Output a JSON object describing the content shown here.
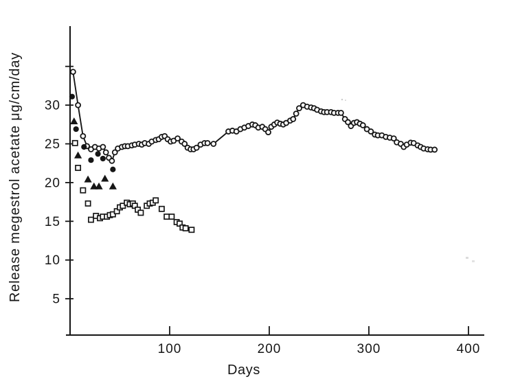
{
  "figure": {
    "background": "#ffffff",
    "ink": "#161616"
  },
  "chart_data": {
    "type": "scatter",
    "title": "",
    "xlabel": "Days",
    "ylabel": "Release megestrol acetate μg/cm/day",
    "xlim": [
      0,
      416
    ],
    "ylim": [
      0,
      40
    ],
    "x_ticks": [
      100,
      200,
      300,
      400
    ],
    "y_ticks": [
      5,
      10,
      15,
      20,
      25,
      30
    ],
    "y_minor_ticks": [
      35
    ],
    "grid": false,
    "legend": "none",
    "series": [
      {
        "name": "open-circle-line",
        "marker": "open-circle",
        "connected": true,
        "points": [
          [
            3,
            34.3
          ],
          [
            8,
            30.0
          ],
          [
            13,
            26.0
          ],
          [
            17,
            24.7
          ],
          [
            21,
            24.3
          ],
          [
            25,
            24.6
          ],
          [
            29,
            24.4
          ],
          [
            33,
            24.6
          ],
          [
            36,
            23.9
          ],
          [
            39,
            23.2
          ],
          [
            42,
            22.8
          ],
          [
            45,
            23.9
          ],
          [
            48,
            24.4
          ],
          [
            52,
            24.6
          ],
          [
            55,
            24.7
          ],
          [
            58,
            24.7
          ],
          [
            62,
            24.8
          ],
          [
            65,
            24.9
          ],
          [
            69,
            25.0
          ],
          [
            72,
            24.9
          ],
          [
            75,
            25.1
          ],
          [
            79,
            25.0
          ],
          [
            82,
            25.3
          ],
          [
            86,
            25.5
          ],
          [
            89,
            25.6
          ],
          [
            92,
            25.9
          ],
          [
            95,
            26.0
          ],
          [
            98,
            25.6
          ],
          [
            101,
            25.3
          ],
          [
            104,
            25.4
          ],
          [
            108,
            25.7
          ],
          [
            112,
            25.3
          ],
          [
            115,
            25.0
          ],
          [
            118,
            24.5
          ],
          [
            121,
            24.3
          ],
          [
            124,
            24.3
          ],
          [
            127,
            24.5
          ],
          [
            131,
            24.9
          ],
          [
            135,
            25.1
          ],
          [
            138,
            25.1
          ],
          [
            144,
            25.0
          ],
          [
            159,
            26.6
          ],
          [
            163,
            26.7
          ],
          [
            167,
            26.6
          ],
          [
            171,
            26.9
          ],
          [
            175,
            27.1
          ],
          [
            179,
            27.3
          ],
          [
            183,
            27.5
          ],
          [
            186,
            27.4
          ],
          [
            189,
            27.1
          ],
          [
            193,
            27.2
          ],
          [
            196,
            26.9
          ],
          [
            199,
            26.5
          ],
          [
            202,
            27.2
          ],
          [
            205,
            27.5
          ],
          [
            208,
            27.75
          ],
          [
            211,
            27.6
          ],
          [
            214,
            27.5
          ],
          [
            217,
            27.7
          ],
          [
            221,
            28.0
          ],
          [
            224,
            28.2
          ],
          [
            227,
            28.9
          ],
          [
            230,
            29.6
          ],
          [
            234,
            30.0
          ],
          [
            238,
            29.8
          ],
          [
            242,
            29.7
          ],
          [
            245,
            29.6
          ],
          [
            248,
            29.4
          ],
          [
            252,
            29.2
          ],
          [
            255,
            29.1
          ],
          [
            258,
            29.1
          ],
          [
            262,
            29.1
          ],
          [
            265,
            29.0
          ],
          [
            269,
            29.0
          ],
          [
            272,
            29.0
          ],
          [
            276,
            28.2
          ],
          [
            279,
            27.8
          ],
          [
            282,
            27.3
          ],
          [
            285,
            27.7
          ],
          [
            288,
            27.8
          ],
          [
            291,
            27.6
          ],
          [
            294,
            27.4
          ],
          [
            298,
            26.9
          ],
          [
            302,
            26.6
          ],
          [
            306,
            26.2
          ],
          [
            309,
            26.1
          ],
          [
            313,
            26.1
          ],
          [
            317,
            25.9
          ],
          [
            321,
            25.8
          ],
          [
            325,
            25.7
          ],
          [
            328,
            25.2
          ],
          [
            332,
            25.0
          ],
          [
            335,
            24.6
          ],
          [
            338,
            24.9
          ],
          [
            342,
            25.15
          ],
          [
            345,
            25.1
          ],
          [
            349,
            24.8
          ],
          [
            352,
            24.6
          ],
          [
            355,
            24.4
          ],
          [
            359,
            24.3
          ],
          [
            362,
            24.25
          ],
          [
            366,
            24.25
          ]
        ]
      },
      {
        "name": "filled-circles",
        "marker": "filled-circle",
        "connected": false,
        "points": [
          [
            2,
            31.1
          ],
          [
            6,
            26.9
          ],
          [
            14,
            24.6
          ],
          [
            21,
            22.9
          ],
          [
            28,
            23.7
          ],
          [
            33,
            23.1
          ],
          [
            43,
            21.7
          ]
        ]
      },
      {
        "name": "filled-triangles",
        "marker": "filled-triangle",
        "connected": false,
        "points": [
          [
            4,
            27.9
          ],
          [
            8,
            23.5
          ],
          [
            18,
            20.4
          ],
          [
            24,
            19.5
          ],
          [
            29,
            19.5
          ],
          [
            35,
            20.5
          ],
          [
            43,
            19.5
          ]
        ]
      },
      {
        "name": "open-squares",
        "marker": "open-square",
        "connected": false,
        "points": [
          [
            5,
            25.1
          ],
          [
            8,
            21.9
          ],
          [
            13,
            19.0
          ],
          [
            18,
            17.3
          ],
          [
            21,
            15.2
          ],
          [
            26,
            15.7
          ],
          [
            30,
            15.4
          ],
          [
            33,
            15.6
          ],
          [
            37,
            15.6
          ],
          [
            40,
            15.8
          ],
          [
            43,
            15.9
          ],
          [
            47,
            16.3
          ],
          [
            50,
            16.8
          ],
          [
            53,
            17.0
          ],
          [
            57,
            17.4
          ],
          [
            60,
            17.2
          ],
          [
            63,
            17.3
          ],
          [
            65,
            17.0
          ],
          [
            68,
            16.5
          ],
          [
            71,
            16.1
          ],
          [
            77,
            17.0
          ],
          [
            80,
            17.3
          ],
          [
            83,
            17.4
          ],
          [
            86,
            17.7
          ],
          [
            92,
            16.6
          ],
          [
            97,
            15.6
          ],
          [
            102,
            15.6
          ],
          [
            107,
            14.9
          ],
          [
            110,
            14.7
          ],
          [
            113,
            14.2
          ],
          [
            116,
            14.1
          ],
          [
            122,
            13.9
          ]
        ]
      }
    ]
  }
}
